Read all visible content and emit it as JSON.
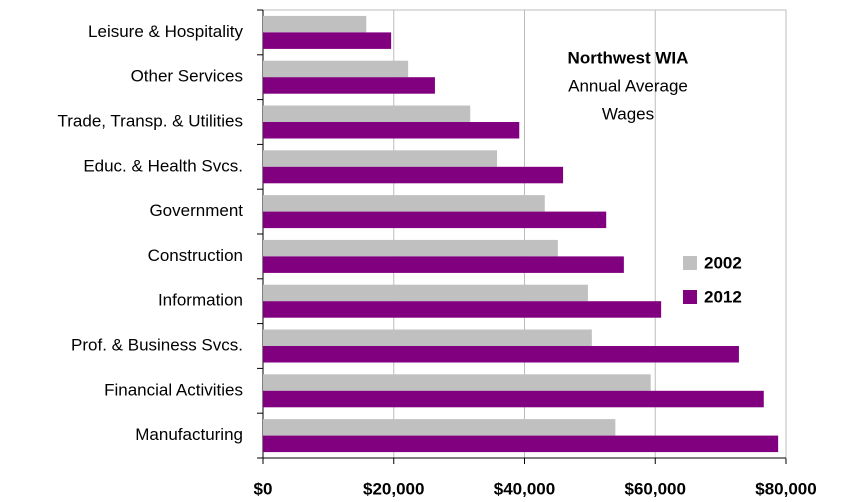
{
  "chart_data": {
    "type": "hbar",
    "annotation": [
      "Northwest WIA",
      "Annual Average",
      "Wages"
    ],
    "categories": [
      "Leisure & Hospitality",
      "Other Services",
      "Trade, Transp. & Utilities",
      "Educ. & Health Svcs.",
      "Government",
      "Construction",
      "Information",
      "Prof. & Business Svcs.",
      "Financial Activities",
      "Manufacturing"
    ],
    "series": [
      {
        "name": "2002",
        "color": "#c0c0c0",
        "values": [
          15800,
          22200,
          31700,
          35800,
          43100,
          45100,
          49700,
          50300,
          59300,
          53900
        ]
      },
      {
        "name": "2012",
        "color": "#800080",
        "values": [
          19600,
          26300,
          39200,
          45900,
          52500,
          55200,
          60900,
          72800,
          76600,
          78800
        ]
      }
    ],
    "xlim": [
      0,
      80000
    ],
    "xticks": [
      {
        "value": 0,
        "label": "$0"
      },
      {
        "value": 20000,
        "label": "$20,000"
      },
      {
        "value": 40000,
        "label": "$40,000"
      },
      {
        "value": 60000,
        "label": "$60,000"
      },
      {
        "value": 80000,
        "label": "$80,000"
      }
    ],
    "grid": true,
    "legend_position": "right"
  }
}
